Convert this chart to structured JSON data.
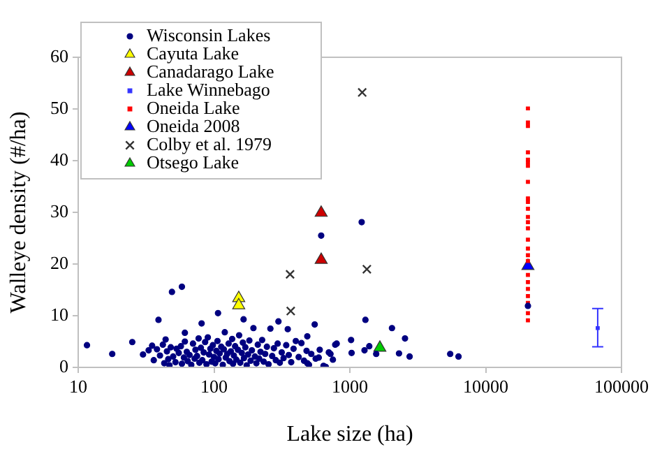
{
  "chart_data": {
    "type": "scatter",
    "xlabel": "Lake size (ha)",
    "ylabel": "Walleye density (#/ha)",
    "log": "x",
    "xlim": [
      10,
      100000
    ],
    "xticks": [
      10,
      100,
      1000,
      10000,
      100000
    ],
    "ylim": [
      0,
      60
    ],
    "yticks": [
      0,
      10,
      20,
      30,
      40,
      50,
      60
    ],
    "grid": false,
    "legend": "top left",
    "series": [
      {
        "name": "Wisconsin Lakes",
        "color": "#000080",
        "marker": "circle",
        "x": [
          11.6,
          17.8,
          25,
          39,
          49,
          58,
          107,
          81,
          61,
          615,
          1222,
          1302,
          2042,
          2547,
          2301,
          2754,
          5480,
          6310,
          20470,
          298,
          349,
          486,
          551,
          165,
          1021,
          1282,
          1390,
          1563,
          1030,
          780,
          720,
          665,
          590,
          486,
          30,
          33,
          35,
          36,
          38,
          40,
          42,
          43,
          44,
          45,
          46,
          47,
          48,
          50,
          52,
          53,
          55,
          57,
          58,
          60,
          61,
          63,
          64,
          66,
          68,
          70,
          72,
          73,
          75,
          77,
          78,
          80,
          82,
          84,
          86,
          88,
          90,
          92,
          94,
          96,
          98,
          100,
          102,
          104,
          106,
          108,
          110,
          113,
          116,
          118,
          120,
          122,
          125,
          128,
          130,
          133,
          136,
          138,
          140,
          143,
          146,
          150,
          153,
          156,
          160,
          163,
          166,
          170,
          174,
          178,
          182,
          186,
          190,
          195,
          200,
          205,
          210,
          215,
          220,
          226,
          232,
          238,
          245,
          252,
          260,
          268,
          276,
          285,
          294,
          305,
          315,
          325,
          340,
          355,
          370,
          385,
          400,
          420,
          440,
          460,
          480,
          500,
          520,
          560,
          600,
          640,
          700,
          750,
          800
        ],
        "values": [
          4.3,
          2.6,
          4.9,
          9.2,
          14.6,
          15.6,
          10.5,
          8.5,
          6.7,
          25.5,
          28.1,
          9.2,
          7.6,
          5.6,
          2.7,
          2.1,
          2.6,
          2.1,
          11.9,
          8.9,
          7.4,
          6.0,
          8.3,
          9.3,
          5.3,
          3.3,
          4.1,
          2.6,
          2.8,
          4.4,
          2.6,
          0.1,
          1.9,
          0.8,
          2.5,
          3.3,
          4.2,
          1.4,
          3.5,
          2.3,
          4.4,
          0.8,
          5.4,
          3.1,
          1.6,
          0.4,
          3.9,
          2.1,
          1.0,
          3.6,
          2.8,
          4.1,
          0.7,
          1.9,
          5.0,
          3.0,
          1.2,
          2.4,
          0.5,
          4.6,
          1.7,
          3.4,
          2.2,
          5.6,
          0.9,
          3.8,
          1.4,
          2.9,
          4.9,
          0.6,
          5.8,
          2.5,
          3.6,
          1.1,
          4.3,
          2.0,
          0.8,
          3.2,
          5.1,
          1.6,
          2.7,
          4.0,
          0.5,
          3.5,
          6.8,
          1.9,
          2.6,
          4.6,
          1.2,
          3.1,
          5.5,
          0.7,
          2.3,
          4.1,
          1.5,
          3.4,
          6.2,
          0.9,
          2.8,
          4.8,
          1.8,
          3.9,
          0.4,
          2.5,
          5.2,
          1.3,
          3.3,
          7.6,
          2.1,
          0.8,
          4.4,
          1.7,
          3.0,
          5.3,
          1.1,
          2.6,
          4.0,
          0.6,
          7.5,
          2.2,
          3.7,
          1.4,
          4.6,
          0.9,
          2.9,
          1.8,
          4.3,
          2.4,
          1.0,
          3.6,
          5.1,
          2.0,
          4.7,
          1.3,
          3.2,
          0.5,
          2.6,
          1.7,
          3.4,
          0.3,
          2.9,
          1.5,
          4.6
        ]
      },
      {
        "name": "Cayuta Lake",
        "color": "#ffff00",
        "marker": "triangle",
        "x": [
          152,
          152
        ],
        "values": [
          13.4,
          12.0
        ]
      },
      {
        "name": "Canadarago Lake",
        "color": "#cc0000",
        "marker": "triangle",
        "x": [
          615,
          615
        ],
        "values": [
          29.9,
          20.8
        ]
      },
      {
        "name": "Lake Winnebago",
        "color": "#3333ff",
        "marker": "square",
        "x": [
          66800
        ],
        "values": [
          7.6
        ],
        "errors": [
          [
            4.0,
            11.4
          ]
        ]
      },
      {
        "name": "Oneida Lake",
        "color": "#ff0000",
        "marker": "square",
        "x": [
          20470,
          20470,
          20470,
          20470,
          20470,
          20470,
          20470,
          20470,
          20470,
          20470,
          20470,
          20470,
          20470,
          20470,
          20470,
          20470,
          20470,
          20470,
          20470,
          20470,
          20470,
          20470,
          20470,
          20470,
          20470
        ],
        "values": [
          50.1,
          47.4,
          46.7,
          41.6,
          40.2,
          39.7,
          39.0,
          35.9,
          32.7,
          32.0,
          30.7,
          29.1,
          28.1,
          26.9,
          24.7,
          23.0,
          21.7,
          20.6,
          17.9,
          16.5,
          15.2,
          13.8,
          12.5,
          10.5,
          9.1
        ]
      },
      {
        "name": "Oneida 2008",
        "color": "#0000ff",
        "marker": "triangle",
        "x": [
          20470
        ],
        "values": [
          19.6
        ]
      },
      {
        "name": "Colby et al. 1979",
        "color": "#333333",
        "marker": "cross",
        "x": [
          1233,
          363,
          367,
          1334
        ],
        "values": [
          53.2,
          18.0,
          10.9,
          19.0
        ]
      },
      {
        "name": "Otsego Lake",
        "color": "#00cc00",
        "marker": "triangle",
        "x": [
          1663
        ],
        "values": [
          3.8
        ]
      }
    ]
  }
}
